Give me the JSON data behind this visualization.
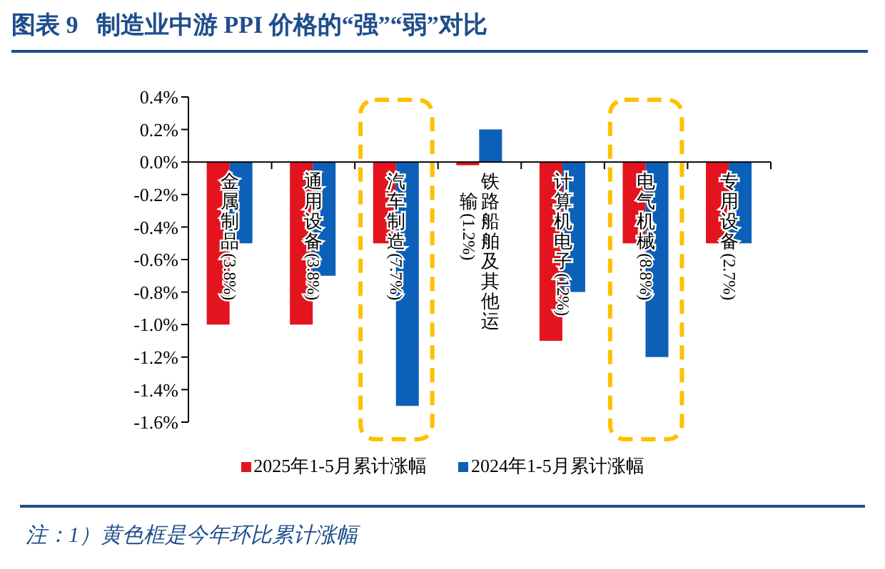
{
  "chart_data": {
    "type": "bar",
    "title": "图表 9   制造业中游 PPI 价格的“强”“弱”对比",
    "categories": [
      "金属制品(3.8%)",
      "通用设备(3.8%)",
      "汽车制造(7.7%)",
      "铁路船舶及其他运输(1.2%)",
      "计算机电子(12%)",
      "电气机械(8.8%)",
      "专用设备(2.7%)"
    ],
    "series": [
      {
        "name": "2025年1-5月累计涨幅",
        "color": "#e3141e",
        "values": [
          -1.0,
          -1.0,
          -0.5,
          -0.02,
          -1.1,
          -0.5,
          -0.5
        ]
      },
      {
        "name": "2024年1-5月累计涨幅",
        "color": "#0c60b8",
        "values": [
          -0.5,
          -0.7,
          -1.5,
          0.2,
          -0.8,
          -1.2,
          -0.5
        ]
      }
    ],
    "ylim": [
      -1.6,
      0.4
    ],
    "yticks": [
      {
        "value": -1.6,
        "label": "-1.6%"
      },
      {
        "value": -1.4,
        "label": "-1.4%"
      },
      {
        "value": -1.2,
        "label": "-1.2%"
      },
      {
        "value": -1.0,
        "label": "-1.0%"
      },
      {
        "value": -0.8,
        "label": "-0.8%"
      },
      {
        "value": -0.6,
        "label": "-0.6%"
      },
      {
        "value": -0.4,
        "label": "-0.4%"
      },
      {
        "value": -0.2,
        "label": "-0.2%"
      },
      {
        "value": 0.0,
        "label": "0.0%"
      },
      {
        "value": 0.2,
        "label": "0.2%"
      },
      {
        "value": 0.4,
        "label": "0.4%"
      }
    ],
    "grid": false,
    "legend": "bottom",
    "annotations": [
      "注：1）黄色框是今年环比累计涨幅"
    ]
  }
}
